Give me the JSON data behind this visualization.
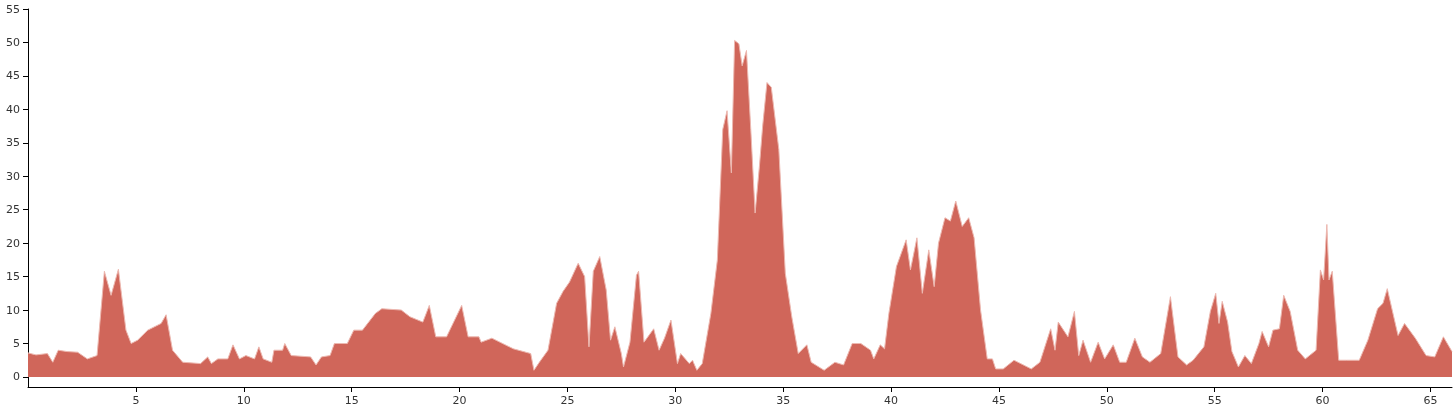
{
  "chart_data": {
    "type": "area",
    "color": "#d0665a",
    "xlim": [
      0,
      66
    ],
    "ylim": [
      -1.5,
      55
    ],
    "xticks": [
      5,
      10,
      15,
      20,
      25,
      30,
      35,
      40,
      45,
      50,
      55,
      60,
      65
    ],
    "yticks": [
      0,
      5,
      10,
      15,
      20,
      25,
      30,
      35,
      40,
      45,
      50,
      55
    ],
    "grid": false,
    "marker": "none",
    "x": [
      0,
      0.37,
      0.9,
      1.15,
      1.4,
      1.8,
      2.3,
      2.75,
      3.2,
      3.54,
      3.85,
      4.19,
      4.54,
      4.78,
      5.08,
      5.55,
      6.17,
      6.4,
      6.7,
      7.17,
      8.0,
      8.33,
      8.5,
      8.8,
      9.26,
      9.5,
      9.8,
      10.1,
      10.5,
      10.7,
      10.9,
      11.3,
      11.4,
      11.8,
      11.9,
      12.2,
      13.1,
      13.35,
      13.6,
      14.0,
      14.2,
      14.8,
      15.1,
      15.5,
      16.1,
      16.4,
      17.3,
      17.7,
      18.3,
      18.6,
      18.9,
      19.4,
      20.1,
      20.4,
      20.9,
      21.0,
      21.5,
      22.5,
      23.3,
      23.45,
      23.7,
      24.1,
      24.5,
      24.8,
      25.1,
      25.5,
      25.8,
      26.0,
      26.2,
      26.5,
      26.8,
      27.0,
      27.2,
      27.5,
      27.6,
      27.9,
      28.2,
      28.3,
      28.55,
      29.0,
      29.25,
      29.5,
      29.8,
      30.1,
      30.25,
      30.65,
      30.8,
      31.0,
      31.25,
      31.65,
      31.95,
      32.2,
      32.4,
      32.6,
      32.75,
      32.95,
      33.1,
      33.3,
      33.5,
      33.7,
      33.9,
      34.05,
      34.25,
      34.45,
      34.8,
      35.1,
      35.4,
      35.7,
      36.1,
      36.3,
      36.9,
      37.4,
      37.8,
      38.2,
      38.6,
      39.05,
      39.2,
      39.5,
      39.7,
      39.9,
      40.25,
      40.7,
      40.9,
      41.2,
      41.45,
      41.75,
      42.0,
      42.2,
      42.5,
      42.75,
      43.0,
      43.3,
      43.6,
      43.85,
      44.15,
      44.46,
      44.7,
      44.85,
      45.2,
      45.7,
      46.5,
      46.9,
      47.4,
      47.6,
      47.75,
      48.2,
      48.5,
      48.7,
      48.9,
      49.25,
      49.6,
      49.9,
      50.3,
      50.6,
      50.9,
      51.3,
      51.65,
      52.0,
      52.5,
      52.95,
      53.3,
      53.7,
      54.0,
      54.5,
      54.8,
      55.05,
      55.2,
      55.35,
      55.6,
      55.8,
      56.1,
      56.4,
      56.7,
      57.05,
      57.2,
      57.5,
      57.7,
      58.0,
      58.2,
      58.5,
      58.85,
      59.2,
      59.7,
      59.9,
      60.05,
      60.2,
      60.3,
      60.45,
      60.75,
      61.1,
      61.7,
      62.1,
      62.55,
      62.8,
      63.0,
      63.5,
      63.8,
      64.3,
      64.8,
      65.2,
      65.6,
      66.0
    ],
    "values": [
      3.6,
      3.3,
      3.5,
      2.2,
      4.0,
      3.8,
      3.7,
      2.7,
      3.2,
      15.8,
      12.2,
      16.1,
      7.0,
      5.0,
      5.5,
      7.0,
      8.0,
      9.3,
      4.0,
      2.2,
      2.0,
      3.0,
      2.0,
      2.7,
      2.7,
      4.8,
      2.7,
      3.2,
      2.7,
      4.5,
      2.7,
      2.2,
      4.0,
      4.0,
      5.0,
      3.2,
      3.0,
      1.8,
      3.0,
      3.2,
      5.0,
      5.0,
      7.0,
      7.0,
      9.5,
      10.2,
      10.0,
      9.0,
      8.2,
      10.7,
      6.0,
      6.0,
      10.7,
      6.0,
      6.0,
      5.2,
      5.8,
      4.2,
      3.5,
      1.0,
      2.2,
      4.0,
      11.0,
      12.8,
      14.2,
      17.0,
      15.0,
      4.5,
      15.8,
      18.0,
      13.0,
      5.5,
      7.5,
      3.5,
      1.5,
      5.2,
      15.2,
      15.8,
      5.2,
      7.2,
      4.0,
      5.8,
      8.5,
      2.0,
      3.5,
      2.0,
      2.5,
      1.0,
      2.0,
      9.5,
      17.5,
      37.0,
      39.8,
      30.5,
      50.3,
      49.8,
      46.5,
      48.8,
      37.0,
      24.5,
      31.5,
      37.5,
      44.0,
      43.3,
      34.0,
      15.5,
      9.0,
      3.5,
      4.8,
      2.2,
      1.0,
      2.2,
      1.8,
      5.0,
      5.0,
      4.0,
      2.7,
      4.8,
      4.2,
      9.5,
      16.5,
      20.5,
      16.0,
      20.8,
      12.5,
      19.0,
      13.5,
      20.0,
      23.8,
      23.3,
      26.3,
      22.5,
      23.8,
      20.8,
      10.0,
      2.7,
      2.7,
      1.2,
      1.2,
      2.5,
      1.2,
      2.2,
      7.2,
      4.0,
      8.2,
      6.0,
      9.8,
      3.2,
      5.5,
      2.2,
      5.2,
      2.7,
      4.8,
      2.2,
      2.2,
      5.8,
      3.0,
      2.2,
      3.5,
      12.0,
      3.0,
      1.8,
      2.5,
      4.5,
      9.8,
      12.5,
      8.0,
      11.3,
      8.2,
      3.8,
      1.5,
      3.2,
      2.0,
      5.0,
      6.8,
      4.5,
      7.0,
      7.2,
      12.2,
      9.8,
      4.0,
      2.7,
      4.0,
      16.0,
      14.5,
      22.8,
      14.5,
      15.8,
      2.5,
      2.5,
      2.5,
      5.5,
      10.2,
      11.0,
      13.2,
      6.2,
      8.0,
      5.8,
      3.2,
      3.0,
      6.0,
      3.8
    ]
  }
}
